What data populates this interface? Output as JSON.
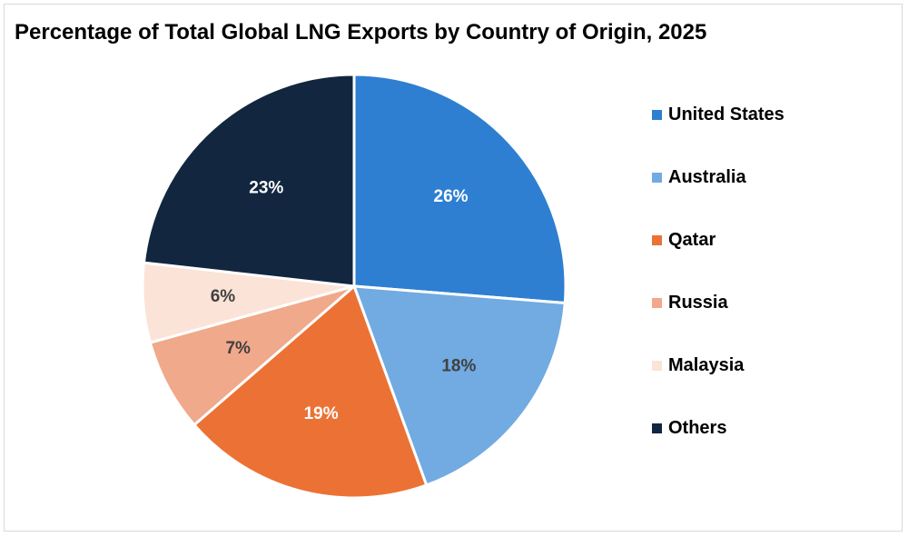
{
  "chart_data": {
    "type": "pie",
    "title": "Percentage of Total Global LNG Exports by Country of Origin, 2025",
    "legend_position": "right",
    "slices": [
      {
        "name": "United States",
        "value": 26,
        "label": "26%",
        "color": "#2e7fd1",
        "label_color": "#ffffff"
      },
      {
        "name": "Australia",
        "value": 18,
        "label": "18%",
        "color": "#72aae2",
        "label_color": "#404040"
      },
      {
        "name": "Qatar",
        "value": 19,
        "label": "19%",
        "color": "#eb7234",
        "label_color": "#ffffff"
      },
      {
        "name": "Russia",
        "value": 7,
        "label": "7%",
        "color": "#f0a98a",
        "label_color": "#404040"
      },
      {
        "name": "Malaysia",
        "value": 6,
        "label": "6%",
        "color": "#fbe3d8",
        "label_color": "#404040"
      },
      {
        "name": "Others",
        "value": 23,
        "label": "23%",
        "color": "#12263f",
        "label_color": "#ffffff"
      }
    ]
  }
}
